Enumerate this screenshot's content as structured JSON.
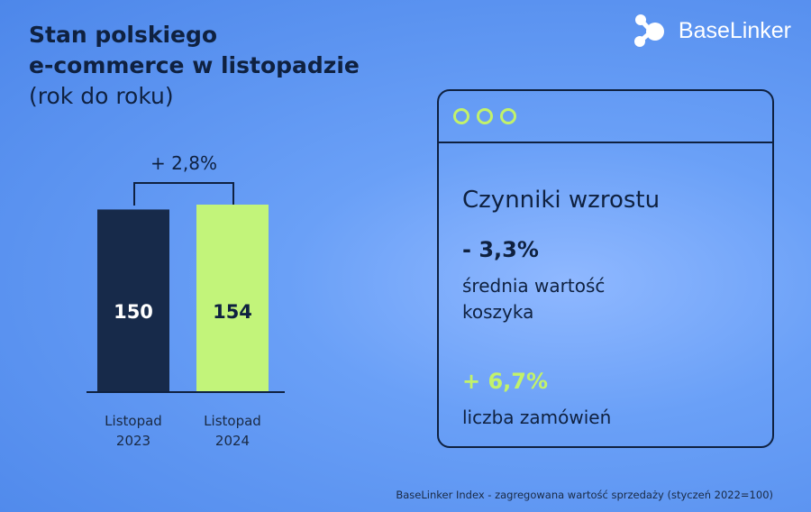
{
  "title": {
    "line1": "Stan polskiego",
    "line2": "e-commerce w listopadzie",
    "line3": "(rok do roku)"
  },
  "logo": {
    "text": "BaseLinker",
    "icon": "molecule-icon",
    "color": "#ffffff"
  },
  "chart_data": {
    "type": "bar",
    "categories": [
      [
        "Listopad",
        "2023"
      ],
      [
        "Listopad",
        "2024"
      ]
    ],
    "values": [
      150,
      154
    ],
    "value_labels": [
      "150",
      "154"
    ],
    "colors": [
      "#172a4a",
      "#c2f47a"
    ],
    "label_colors": [
      "#ffffff",
      "#0f2140"
    ],
    "change_label": "+ 2,8%",
    "ylim": [
      0,
      154
    ]
  },
  "card": {
    "title": "Czynniki wzrostu",
    "metrics": [
      {
        "value": "- 3,3%",
        "desc_line1": "średnia wartość",
        "desc_line2": "koszyka",
        "color": "#0f2140"
      },
      {
        "value": "+ 6,7%",
        "desc_line1": "liczba zamówień",
        "color": "#c2f26a"
      }
    ]
  },
  "footnote": "BaseLinker Index - zagregowana wartość sprzedaży (styczeń 2022=100)"
}
